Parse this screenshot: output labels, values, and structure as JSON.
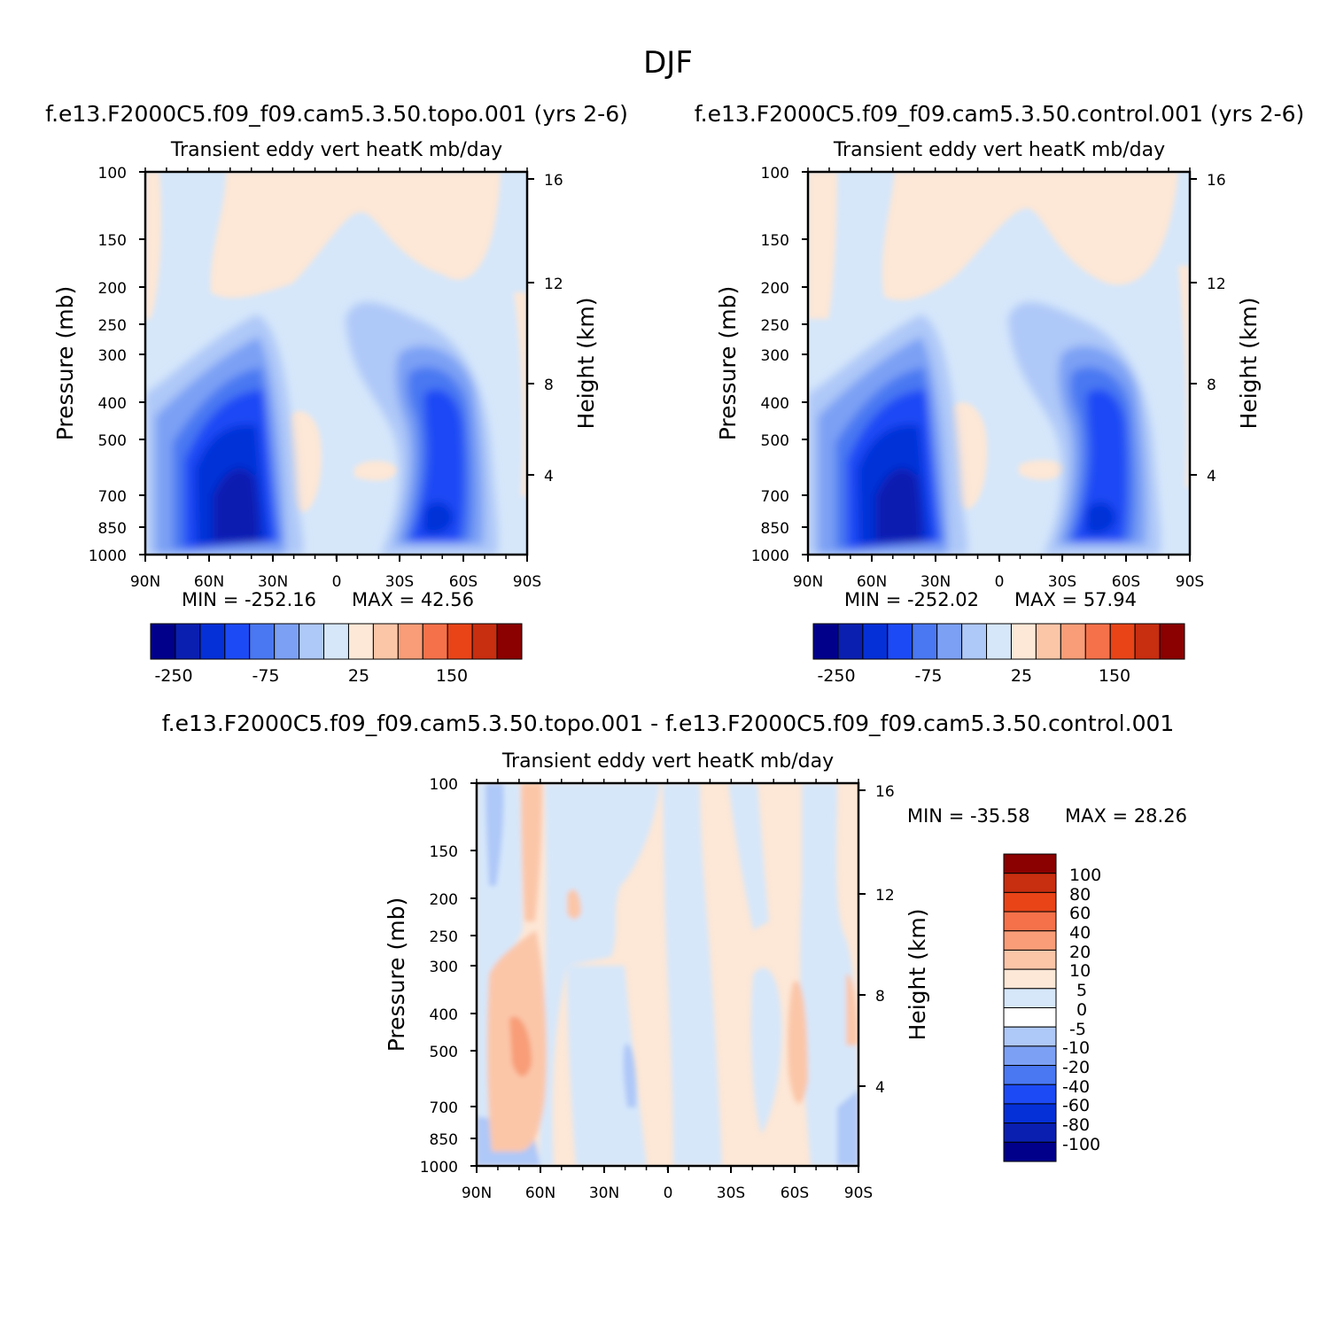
{
  "figure_title": "DJF",
  "chart_data": [
    {
      "type": "heatmap",
      "subtype": "filled-contour",
      "case_title": "f.e13.F2000C5.f09_f09.cam5.3.50.topo.001 (yrs 2-6)",
      "subtitle": "Transient eddy vert heatK mb/day",
      "ylabel": "Pressure (mb)",
      "ylabel_right": "Height (km)",
      "x_ticks": [
        "90N",
        "60N",
        "30N",
        "0",
        "30S",
        "60S",
        "90S"
      ],
      "x_values": [
        90,
        60,
        30,
        0,
        -30,
        -60,
        -90
      ],
      "y_ticks": [
        100,
        150,
        200,
        250,
        300,
        400,
        500,
        700,
        850,
        1000
      ],
      "y_right_ticks": [
        16,
        12,
        8,
        4
      ],
      "ylim": [
        1000,
        100
      ],
      "min_label": "MIN = -252.16",
      "max_label": "MAX = 42.56",
      "min": -252.16,
      "max": 42.56,
      "colorbar_labels": [
        "-250",
        "-75",
        "25",
        "150"
      ],
      "features": [
        {
          "lat": 47,
          "p": 620,
          "value": -250,
          "desc": "NH midlatitude minimum"
        },
        {
          "lat": -50,
          "p": 820,
          "value": -200,
          "desc": "SH midlatitude minimum"
        }
      ]
    },
    {
      "type": "heatmap",
      "subtype": "filled-contour",
      "case_title": "f.e13.F2000C5.f09_f09.cam5.3.50.control.001 (yrs 2-6)",
      "subtitle": "Transient eddy vert heatK mb/day",
      "ylabel": "Pressure (mb)",
      "ylabel_right": "Height (km)",
      "x_ticks": [
        "90N",
        "60N",
        "30N",
        "0",
        "30S",
        "60S",
        "90S"
      ],
      "x_values": [
        90,
        60,
        30,
        0,
        -30,
        -60,
        -90
      ],
      "y_ticks": [
        100,
        150,
        200,
        250,
        300,
        400,
        500,
        700,
        850,
        1000
      ],
      "y_right_ticks": [
        16,
        12,
        8,
        4
      ],
      "ylim": [
        1000,
        100
      ],
      "min_label": "MIN = -252.02",
      "max_label": "MAX = 57.94",
      "min": -252.02,
      "max": 57.94,
      "colorbar_labels": [
        "-250",
        "-75",
        "25",
        "150"
      ],
      "features": [
        {
          "lat": 47,
          "p": 620,
          "value": -250,
          "desc": "NH midlatitude minimum"
        },
        {
          "lat": -50,
          "p": 820,
          "value": -200,
          "desc": "SH midlatitude minimum"
        }
      ]
    },
    {
      "type": "heatmap",
      "subtype": "filled-contour",
      "case_title": "f.e13.F2000C5.f09_f09.cam5.3.50.topo.001 - f.e13.F2000C5.f09_f09.cam5.3.50.control.001",
      "subtitle": "Transient eddy vert heatK mb/day",
      "ylabel": "Pressure (mb)",
      "ylabel_right": "Height (km)",
      "x_ticks": [
        "90N",
        "60N",
        "30N",
        "0",
        "30S",
        "60S",
        "90S"
      ],
      "x_values": [
        90,
        60,
        30,
        0,
        -30,
        -60,
        -90
      ],
      "y_ticks": [
        100,
        150,
        200,
        250,
        300,
        400,
        500,
        700,
        850,
        1000
      ],
      "y_right_ticks": [
        16,
        12,
        8,
        4
      ],
      "ylim": [
        1000,
        100
      ],
      "min_label": "MIN = -35.58",
      "max_label": "MAX = 28.26",
      "min": -35.58,
      "max": 28.26,
      "colorbar_labels": [
        "100",
        "80",
        "60",
        "40",
        "20",
        "10",
        "5",
        "0",
        "-5",
        "-10",
        "-20",
        "-40",
        "-60",
        "-80",
        "-100"
      ],
      "features": [
        {
          "lat": 72,
          "p": 500,
          "value": 20,
          "desc": "positive column near 70N"
        },
        {
          "lat": -60,
          "p": 480,
          "value": 10,
          "desc": "positive band near 60S"
        }
      ]
    }
  ],
  "colors": {
    "diverging": [
      "#00008b",
      "#0a1fb0",
      "#0530d8",
      "#1c4af5",
      "#4a78f2",
      "#7ca0f4",
      "#aec8f8",
      "#d6e7fa",
      "#fde7d6",
      "#fbc6a8",
      "#f89d77",
      "#f5714a",
      "#e84418",
      "#c82e10",
      "#8b0000"
    ],
    "background": "#ffffff"
  }
}
